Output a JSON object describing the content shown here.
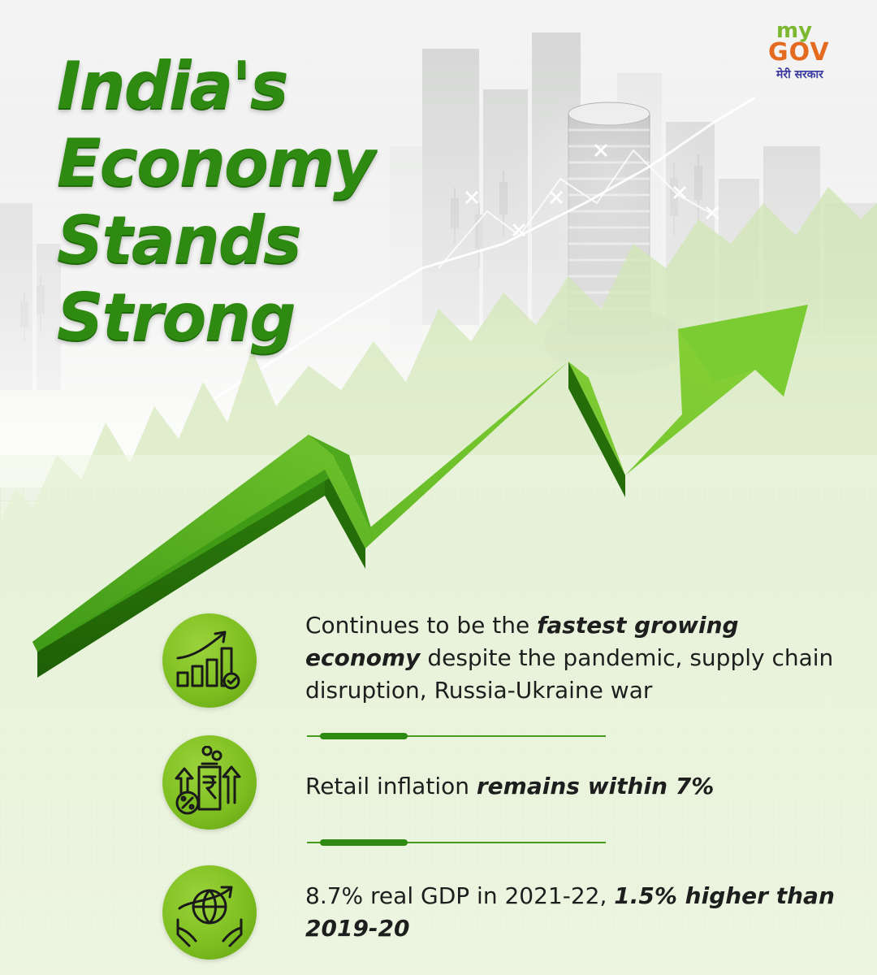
{
  "title": {
    "line1": "India's",
    "line2": "Economy",
    "line3": "Stands",
    "line4": "Strong"
  },
  "logo": {
    "my": "my",
    "gov": "GOV",
    "tagline": "मेरी सरकार"
  },
  "points": [
    {
      "icon": "bar-chart-growth-icon",
      "text_a": "Continues to be the ",
      "em_a": "fastest growing economy",
      "text_b": " despite the pandemic, supply chain disruption, Russia-Ukraine war"
    },
    {
      "icon": "rupee-inflation-icon",
      "text_a": "Retail inflation ",
      "em_a": "remains within 7%",
      "text_b": ""
    },
    {
      "icon": "globe-growth-hands-icon",
      "text_a": "8.7% real GDP in 2021-22, ",
      "em_a": "1.5% higher than 2019-20",
      "text_b": ""
    }
  ],
  "colors": {
    "title_green": "#2f8a12",
    "accent_green": "#7cbd1f",
    "logo_orange": "#e36a1e",
    "logo_blue": "#3a3aa0"
  }
}
